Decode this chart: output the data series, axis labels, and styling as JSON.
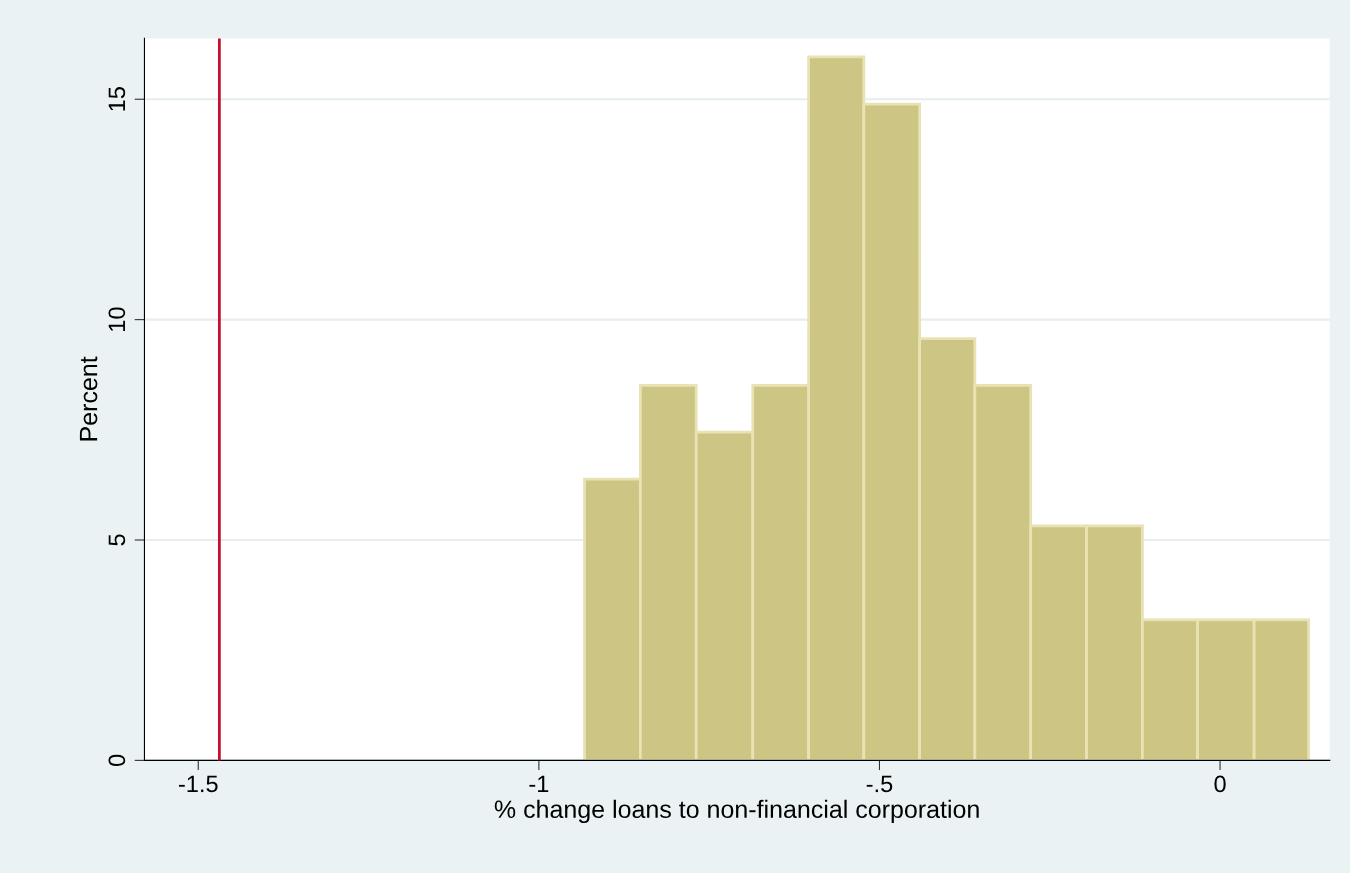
{
  "chart_data": {
    "type": "histogram",
    "xlabel": "% change loans to non-financial corporation",
    "ylabel": "Percent",
    "bins": [
      -0.933,
      -0.851,
      -0.769,
      -0.686,
      -0.604,
      -0.523,
      -0.441,
      -0.36,
      -0.278,
      -0.196,
      -0.114,
      -0.033,
      0.05,
      0.13
    ],
    "values": [
      6.38,
      8.51,
      7.45,
      8.51,
      15.96,
      14.89,
      9.57,
      8.51,
      5.32,
      5.32,
      3.19,
      3.19,
      3.19
    ],
    "color": "#cdc584",
    "xlim": [
      -1.579,
      0.161
    ],
    "xticks": [
      {
        "value": -1.5,
        "label": "-1.5"
      },
      {
        "value": -1,
        "label": "-1"
      },
      {
        "value": -0.5,
        "label": "-.5"
      },
      {
        "value": 0,
        "label": "0"
      }
    ],
    "ylim": [
      0,
      16.38
    ],
    "yticks": [
      0,
      5,
      10,
      15
    ],
    "grid": "y",
    "ref_lines": [
      {
        "axis": "x",
        "value": -1.469,
        "color": "#c8102e"
      }
    ]
  }
}
